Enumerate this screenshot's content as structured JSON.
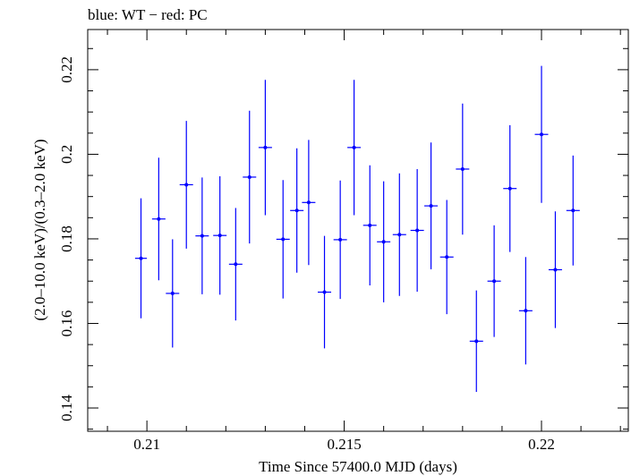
{
  "header_text": "blue: WT − red: PC",
  "chart_data": {
    "type": "scatter",
    "title": "blue: WT − red: PC",
    "xlabel": "Time Since 57400.0 MJD (days)",
    "ylabel": "(2.0–10.0 keV)/(0.3–2.0 keV)",
    "xlim": [
      0.2085,
      0.2222
    ],
    "ylim": [
      0.1345,
      0.2295
    ],
    "xticks": [
      0.21,
      0.215,
      0.22
    ],
    "xtick_labels": [
      "0.21",
      "0.215",
      "0.22"
    ],
    "yticks": [
      0.14,
      0.16,
      0.18,
      0.2,
      0.22
    ],
    "ytick_labels": [
      "0.14",
      "0.16",
      "0.18",
      "0.2",
      "0.22"
    ],
    "grid": false,
    "colors": {
      "WT": "#0000ff",
      "PC": "#ff0000",
      "frame": "#000000"
    },
    "series": [
      {
        "name": "WT",
        "color": "#0000ff",
        "x": [
          0.20985,
          0.2103,
          0.21065,
          0.211,
          0.2114,
          0.21185,
          0.21225,
          0.2126,
          0.213,
          0.21345,
          0.2138,
          0.2141,
          0.2145,
          0.2149,
          0.21525,
          0.21565,
          0.216,
          0.2164,
          0.21685,
          0.2172,
          0.2176,
          0.218,
          0.21835,
          0.2188,
          0.2192,
          0.2196,
          0.22,
          0.22035,
          0.2208
        ],
        "xerr": [
          0.00015,
          0.00017,
          0.00017,
          0.00017,
          0.00017,
          0.00017,
          0.00017,
          0.00017,
          0.00017,
          0.00017,
          0.00017,
          0.00017,
          0.00017,
          0.00017,
          0.00017,
          0.00017,
          0.00017,
          0.00017,
          0.00017,
          0.00017,
          0.00017,
          0.00017,
          0.00017,
          0.00017,
          0.00017,
          0.00017,
          0.00017,
          0.00017,
          0.00017
        ],
        "y": [
          0.1754,
          0.1847,
          0.1671,
          0.1928,
          0.1807,
          0.1808,
          0.174,
          0.1946,
          0.2016,
          0.1799,
          0.1867,
          0.1886,
          0.1674,
          0.1798,
          0.2016,
          0.1832,
          0.1793,
          0.181,
          0.182,
          0.1878,
          0.1757,
          0.1965,
          0.1558,
          0.17,
          0.1919,
          0.163,
          0.2047,
          0.1727,
          0.1867
        ],
        "yerr": [
          0.0142,
          0.0145,
          0.0128,
          0.0151,
          0.0138,
          0.014,
          0.0133,
          0.0157,
          0.016,
          0.014,
          0.0147,
          0.0148,
          0.0133,
          0.014,
          0.016,
          0.0142,
          0.0143,
          0.0145,
          0.0145,
          0.015,
          0.0135,
          0.0155,
          0.012,
          0.0132,
          0.015,
          0.0127,
          0.0162,
          0.0138,
          0.013
        ]
      }
    ]
  }
}
